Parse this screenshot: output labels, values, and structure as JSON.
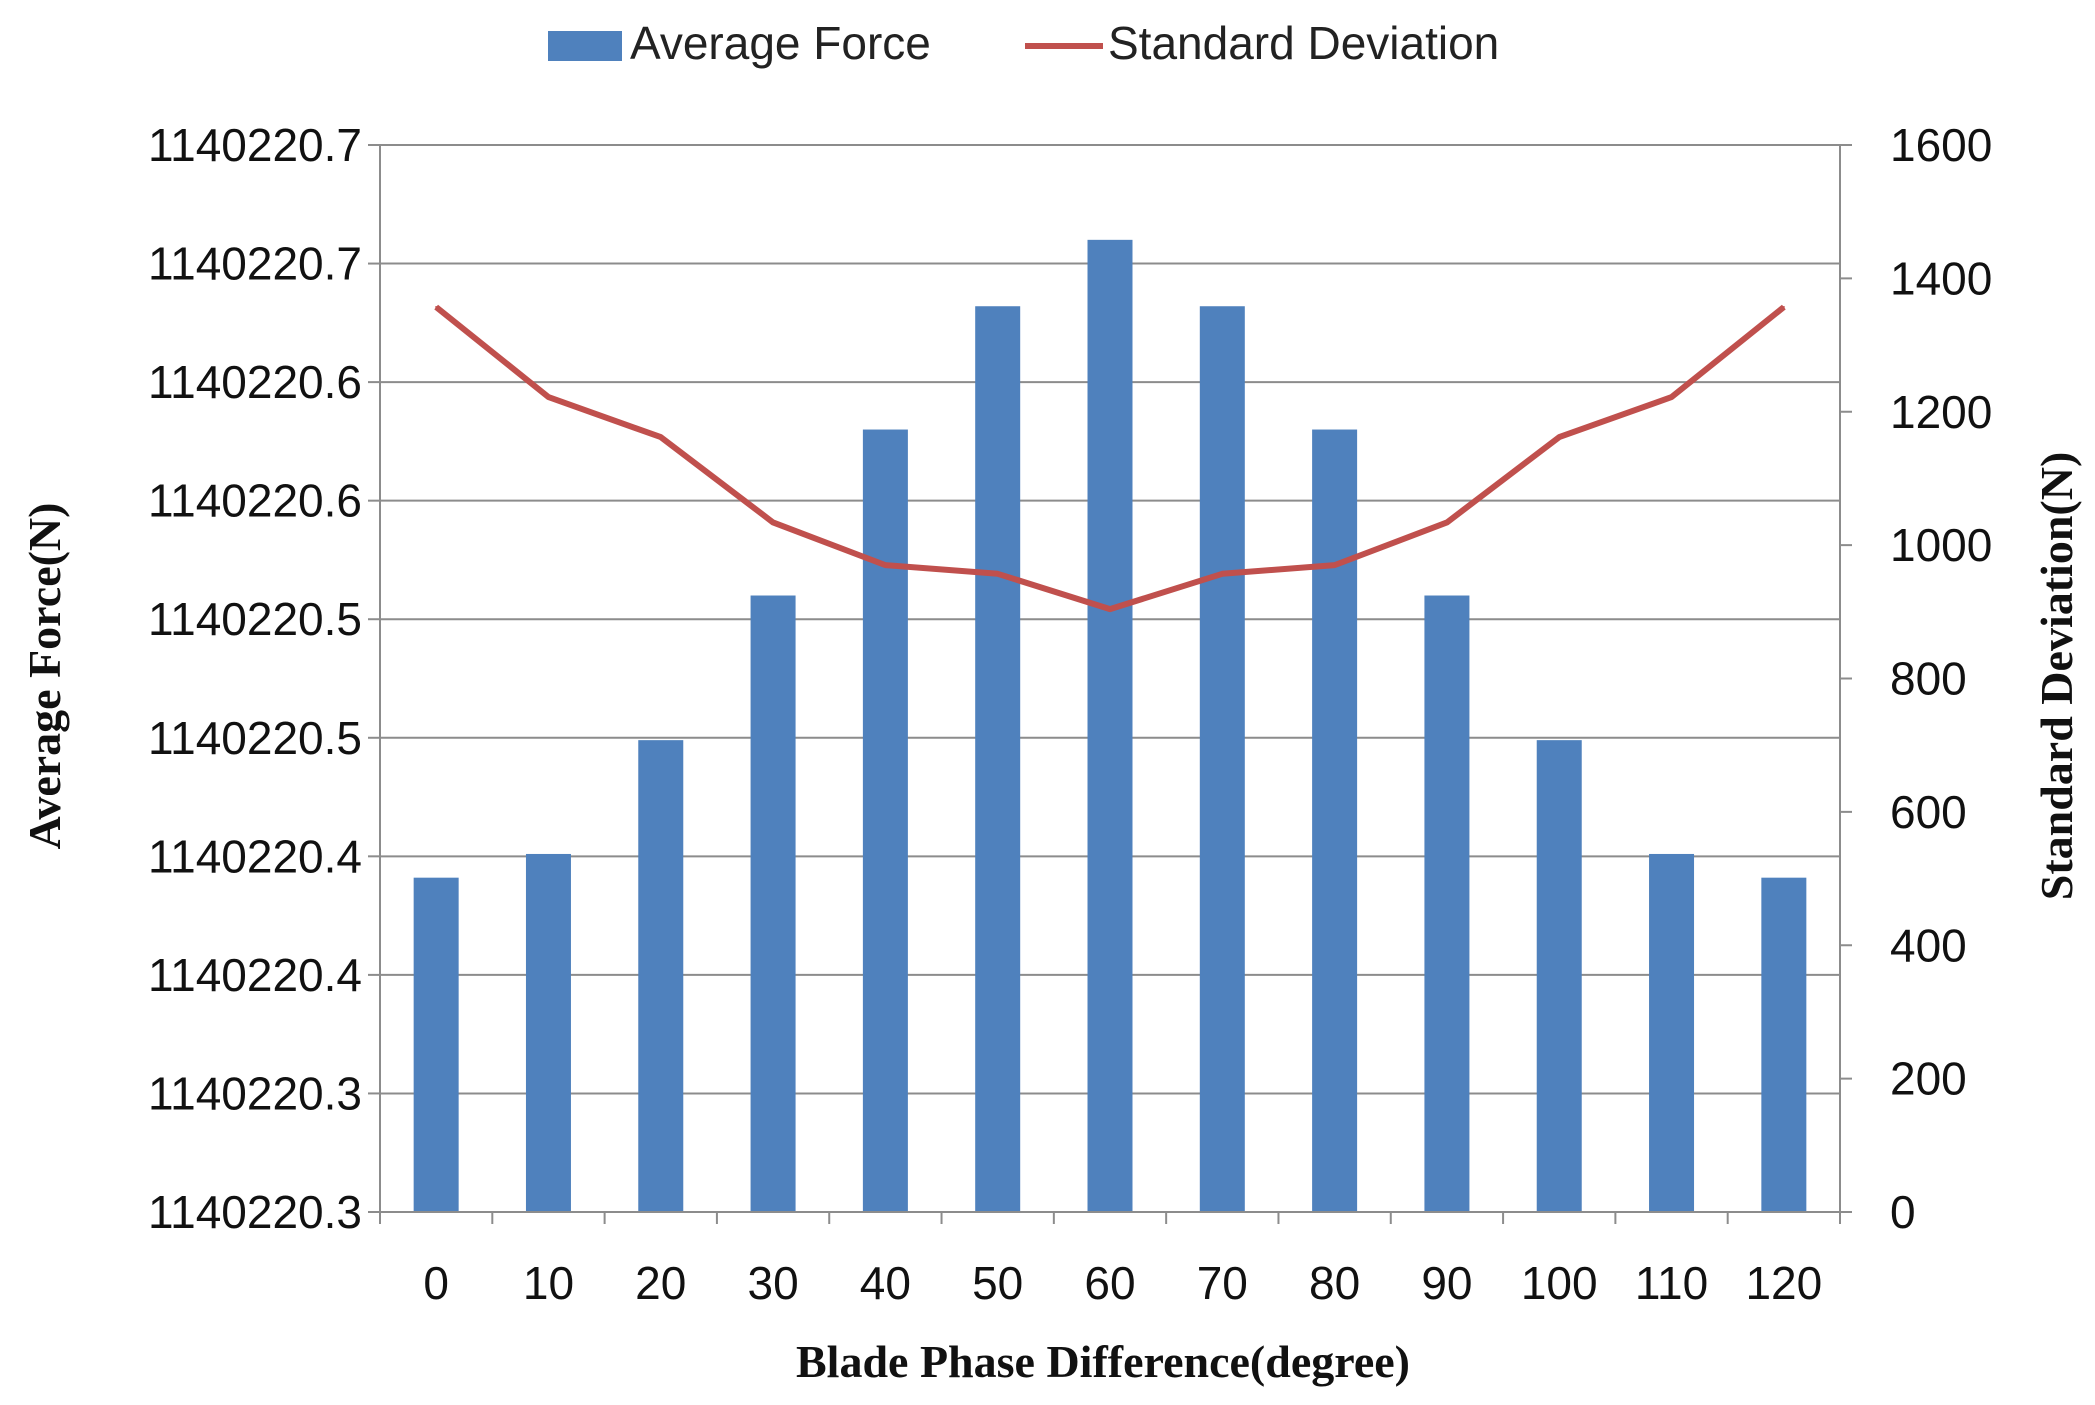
{
  "chart_data": {
    "type": "bar",
    "title": "",
    "xlabel": "Blade Phase Difference(degree)",
    "ylabel_left": "Average Force(N)",
    "ylabel_right": "Standard Deviation(N)",
    "categories": [
      "0",
      "10",
      "20",
      "30",
      "40",
      "50",
      "60",
      "70",
      "80",
      "90",
      "100",
      "110",
      "120"
    ],
    "left_axis": {
      "ylim": [
        1140220.3,
        1140220.75
      ],
      "tick_values": [
        1140220.3,
        1140220.35,
        1140220.4,
        1140220.45,
        1140220.5,
        1140220.55,
        1140220.6,
        1140220.65,
        1140220.7,
        1140220.75
      ],
      "tick_labels": [
        "1140220.3",
        "1140220.3",
        "1140220.4",
        "1140220.4",
        "1140220.5",
        "1140220.5",
        "1140220.6",
        "1140220.6",
        "1140220.7",
        "1140220.7"
      ]
    },
    "right_axis": {
      "ylim": [
        0,
        1600
      ],
      "tick_values": [
        0,
        200,
        400,
        600,
        800,
        1000,
        1200,
        1400,
        1600
      ],
      "tick_labels": [
        "0",
        "200",
        "400",
        "600",
        "800",
        "1000",
        "1200",
        "1400",
        "1600"
      ]
    },
    "series": [
      {
        "name": "Average Force",
        "type": "bar",
        "axis": "left",
        "color": "#4F81BD",
        "values": [
          1140220.441,
          1140220.451,
          1140220.499,
          1140220.56,
          1140220.63,
          1140220.682,
          1140220.71,
          1140220.682,
          1140220.63,
          1140220.56,
          1140220.499,
          1140220.451,
          1140220.441
        ]
      },
      {
        "name": "Standard Deviation",
        "type": "line",
        "axis": "right",
        "color": "#C0504D",
        "values": [
          1357,
          1222,
          1162,
          1034,
          970,
          957,
          904,
          957,
          970,
          1034,
          1162,
          1222,
          1357
        ]
      }
    ],
    "legend": {
      "position": "top-center"
    },
    "grid": true
  }
}
